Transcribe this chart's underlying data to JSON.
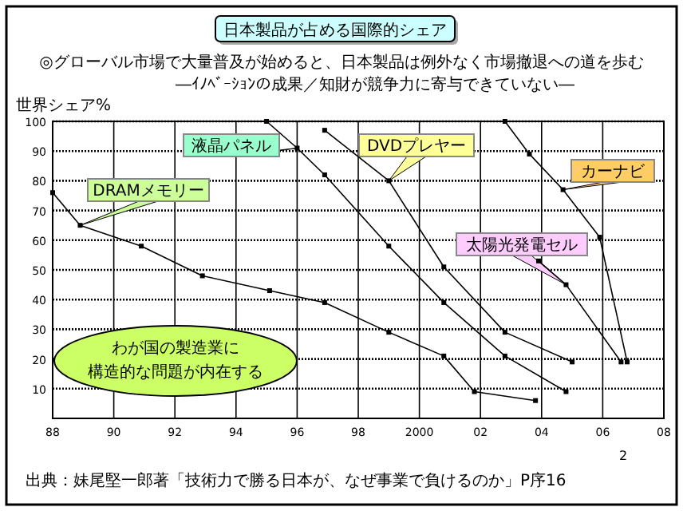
{
  "chart_data": {
    "type": "line",
    "title": "日本製品が占める国際的シェア",
    "subtitle": "◎グローバル市場で大量普及が始めると、日本製品は例外なく市場撤退への道を歩む",
    "ylabel": "世界シェア%",
    "annotations": [
      "―ｲﾉﾍﾞｰｼｮﾝの成果／知財が競争力に寄与できていない―",
      "わが国の製造業に",
      "構造的な問題が内在する",
      "出典：妹尾堅一郎著「技術力で勝る日本が、なぜ事業で負けるのか」P序16",
      "2"
    ],
    "xlim": [
      1988,
      2008
    ],
    "ylim": [
      0,
      100
    ],
    "xticks": [
      {
        "value": 1988,
        "label": "88"
      },
      {
        "value": 1990,
        "label": "90"
      },
      {
        "value": 1992,
        "label": "92"
      },
      {
        "value": 1994,
        "label": "94"
      },
      {
        "value": 1996,
        "label": "96"
      },
      {
        "value": 1998,
        "label": "98"
      },
      2000,
      {
        "value": 2002,
        "label": "02"
      },
      {
        "value": 2004,
        "label": "04"
      },
      {
        "value": 2006,
        "label": "06"
      },
      {
        "value": 2008,
        "label": "08"
      }
    ],
    "yticks": [
      10,
      20,
      30,
      40,
      50,
      60,
      70,
      80,
      90,
      100
    ],
    "grid": true,
    "marker": "square",
    "line_style": "solid",
    "series": [
      {
        "name": "DRAMメモリー",
        "color": "#000000",
        "x": [
          1988,
          1988.9,
          1990.9,
          1992.9,
          1995.1,
          1996.9,
          1999,
          2000.8,
          2001.8,
          2003.8
        ],
        "values": [
          76,
          65,
          58,
          48,
          43,
          39,
          29,
          21,
          9,
          6
        ]
      },
      {
        "name": "液晶パネル",
        "color": "#000000",
        "x": [
          1995,
          1996,
          1996.9,
          1999,
          2000.8,
          2002.8,
          2004.8
        ],
        "values": [
          100,
          91,
          82,
          58,
          39,
          21,
          9
        ]
      },
      {
        "name": "DVDプレヤー",
        "color": "#000000",
        "x": [
          1996.9,
          1999,
          2000.8,
          2002.8,
          2005
        ],
        "values": [
          97,
          80,
          51,
          29,
          19
        ]
      },
      {
        "name": "カーナビ",
        "color": "#000000",
        "x": [
          2002.8,
          2003.6,
          2004.7,
          2005.9,
          2006.8
        ],
        "values": [
          100,
          89,
          77,
          61,
          19
        ]
      },
      {
        "name": "太陽光発電セル",
        "color": "#000000",
        "x": [
          2003.9,
          2004.8,
          2006.6
        ],
        "values": [
          53,
          45,
          19
        ]
      }
    ]
  }
}
